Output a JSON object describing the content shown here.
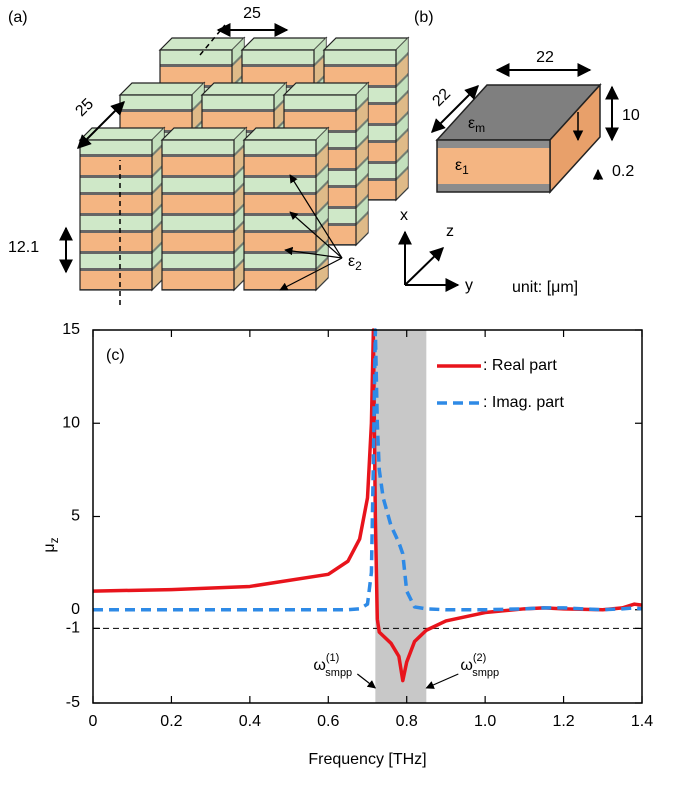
{
  "chart_data": {
    "type": "line",
    "panel_label": "(c)",
    "xlabel": "Frequency [THz]",
    "ylabel": {
      "base": "μ",
      "sub": "z"
    },
    "x": [
      0,
      0.2,
      0.4,
      0.6,
      0.65,
      0.68,
      0.7,
      0.71,
      0.715,
      0.72,
      0.725,
      0.73,
      0.74,
      0.76,
      0.78,
      0.79,
      0.8,
      0.82,
      0.85,
      0.9,
      1.0,
      1.1,
      1.15,
      1.2,
      1.3,
      1.35,
      1.38,
      1.4
    ],
    "series": [
      {
        "name": ": Real part",
        "color": "#e8141c",
        "dash": false,
        "values": [
          1,
          1.08,
          1.25,
          1.9,
          2.6,
          3.8,
          6,
          10,
          15,
          5,
          -0.5,
          -1.2,
          -1.4,
          -1.8,
          -2.5,
          -3.8,
          -2.8,
          -1.7,
          -1.1,
          -0.6,
          -0.15,
          0.05,
          0.1,
          0.05,
          0,
          0.1,
          0.3,
          0.25
        ]
      },
      {
        "name": ": Imag. part",
        "color": "#2e8ae6",
        "dash": true,
        "values": [
          0,
          0,
          0,
          0,
          0,
          0.05,
          0.3,
          2,
          8,
          15,
          10,
          7.5,
          6,
          4.5,
          3.6,
          3,
          1,
          0.15,
          0.05,
          0,
          0,
          0.05,
          0.1,
          0.1,
          0,
          0.05,
          0.1,
          0.05
        ]
      }
    ],
    "xlim": [
      0,
      1.4
    ],
    "xticks": [
      0,
      0.2,
      0.4,
      0.6,
      0.8,
      {
        "value": 1,
        "label": "1.0"
      },
      1.2,
      1.4
    ],
    "ylim": [
      -5,
      15
    ],
    "yticks": [
      -5,
      -1,
      0,
      5,
      10,
      15
    ],
    "shaded_region": [
      0.72,
      0.85
    ],
    "reference_line": -1,
    "legend": "upper right",
    "annotations": [
      {
        "base": "ω",
        "sup": "(1)",
        "sub": "smpp"
      },
      {
        "base": "ω",
        "sup": "(2)",
        "sub": "smpp"
      }
    ]
  },
  "diagram": {
    "panel_a": {
      "label": "(a)",
      "period_top": "25",
      "period_side": "25",
      "height": "12.1",
      "eps": {
        "base": "ε",
        "sub": "2"
      }
    },
    "panel_b": {
      "label": "(b)",
      "width_top": "22",
      "width_side": "22",
      "thickness": "10",
      "metal": "0.2",
      "eps_m": {
        "base": "ε",
        "sub": "m"
      },
      "eps_1": {
        "base": "ε",
        "sub": "1"
      },
      "axis_x": "x",
      "axis_y": "y",
      "axis_z": "z",
      "unit": "unit: [μm]"
    }
  }
}
